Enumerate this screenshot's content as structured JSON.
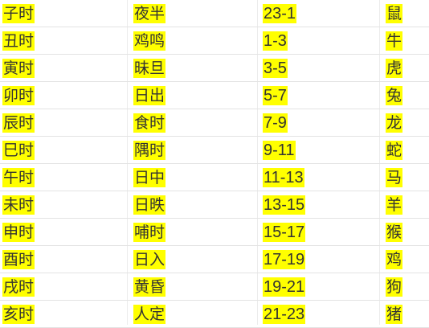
{
  "highlight_color": "#ffff00",
  "rows": [
    {
      "branch": "子时",
      "name": "夜半",
      "hours": "23-1",
      "animal": "鼠"
    },
    {
      "branch": "丑时",
      "name": "鸡鸣",
      "hours": "1-3",
      "animal": "牛"
    },
    {
      "branch": "寅时",
      "name": "昧旦",
      "hours": "3-5",
      "animal": "虎"
    },
    {
      "branch": "卯时",
      "name": "日出",
      "hours": "5-7",
      "animal": "兔"
    },
    {
      "branch": "辰时",
      "name": "食时",
      "hours": "7-9",
      "animal": "龙"
    },
    {
      "branch": "巳时",
      "name": "隅时",
      "hours": "9-11",
      "animal": "蛇"
    },
    {
      "branch": "午时",
      "name": "日中",
      "hours": "11-13",
      "animal": "马"
    },
    {
      "branch": "未时",
      "name": "日昳",
      "hours": "13-15",
      "animal": "羊"
    },
    {
      "branch": "申时",
      "name": "哺时",
      "hours": "15-17",
      "animal": "猴"
    },
    {
      "branch": "酉时",
      "name": "日入",
      "hours": "17-19",
      "animal": "鸡"
    },
    {
      "branch": "戌时",
      "name": "黄昏",
      "hours": "19-21",
      "animal": "狗"
    },
    {
      "branch": "亥时",
      "name": "人定",
      "hours": "21-23",
      "animal": "猪"
    }
  ]
}
